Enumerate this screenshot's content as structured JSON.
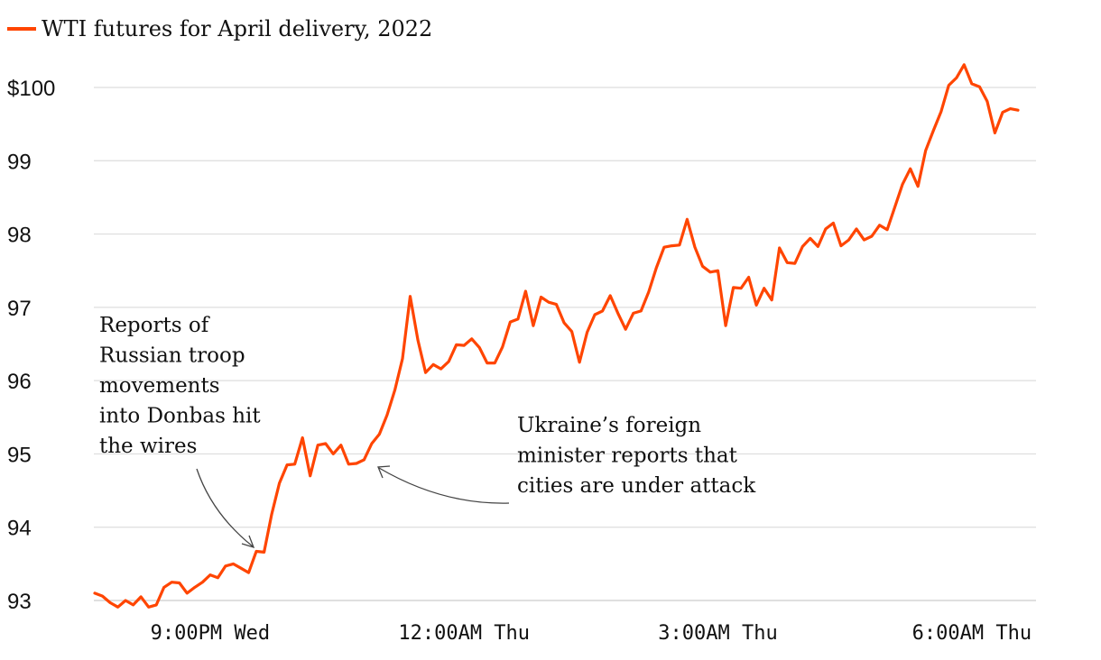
{
  "chart_data": {
    "type": "line",
    "title": "",
    "legend": [
      {
        "label": "WTI futures for April delivery, 2022",
        "color": "#ff4500"
      }
    ],
    "ylim": [
      93,
      100.4
    ],
    "yticks": [
      {
        "value": 100,
        "label": "$100"
      },
      {
        "value": 99,
        "label": "99"
      },
      {
        "value": 98,
        "label": "98"
      },
      {
        "value": 97,
        "label": "97"
      },
      {
        "value": 96,
        "label": "96"
      },
      {
        "value": 95,
        "label": "95"
      },
      {
        "value": 94,
        "label": "94"
      },
      {
        "value": 93,
        "label": "93"
      }
    ],
    "xlim": [
      0,
      134
    ],
    "xticks": [
      {
        "index": 15,
        "label": "9:00PM Wed"
      },
      {
        "index": 48,
        "label": "12:00AM Thu"
      },
      {
        "index": 81,
        "label": "3:00AM Thu"
      },
      {
        "index": 114,
        "label": "6:00AM Thu"
      }
    ],
    "series": [
      {
        "name": "WTI futures for April delivery, 2022",
        "color": "#ff4500",
        "values": [
          93.1,
          93.06,
          92.97,
          92.91,
          93.0,
          92.94,
          93.05,
          92.91,
          92.94,
          93.18,
          93.25,
          93.24,
          93.1,
          93.18,
          93.25,
          93.35,
          93.31,
          93.47,
          93.5,
          93.44,
          93.38,
          93.67,
          93.66,
          94.18,
          94.6,
          94.85,
          94.86,
          95.22,
          94.7,
          95.12,
          95.14,
          95.0,
          95.12,
          94.86,
          94.87,
          94.92,
          95.14,
          95.27,
          95.53,
          95.87,
          96.3,
          97.15,
          96.55,
          96.11,
          96.22,
          96.16,
          96.26,
          96.49,
          96.48,
          96.57,
          96.45,
          96.24,
          96.24,
          96.46,
          96.8,
          96.84,
          97.22,
          96.75,
          97.14,
          97.07,
          97.04,
          96.79,
          96.67,
          96.25,
          96.66,
          96.9,
          96.95,
          97.16,
          96.92,
          96.7,
          96.92,
          96.95,
          97.21,
          97.54,
          97.82,
          97.84,
          97.85,
          98.2,
          97.82,
          97.56,
          97.48,
          97.5,
          96.75,
          97.27,
          97.26,
          97.41,
          97.03,
          97.26,
          97.1,
          97.81,
          97.61,
          97.6,
          97.83,
          97.94,
          97.83,
          98.07,
          98.15,
          97.84,
          97.92,
          98.07,
          97.92,
          97.97,
          98.12,
          98.06,
          98.37,
          98.68,
          98.89,
          98.65,
          99.14,
          99.41,
          99.67,
          100.03,
          100.13,
          100.31,
          100.05,
          100.01,
          99.81,
          99.38,
          99.66,
          99.71,
          99.69
        ]
      }
    ],
    "annotations": [
      {
        "id": "troop",
        "lines": [
          "Reports of",
          "Russian troop",
          "movements",
          "into Donbas hit",
          "the wires"
        ],
        "target_index": 22
      },
      {
        "id": "attack",
        "lines": [
          "Ukraine’s foreign",
          "minister reports that",
          "cities are under attack"
        ],
        "target_index": 35
      }
    ]
  }
}
